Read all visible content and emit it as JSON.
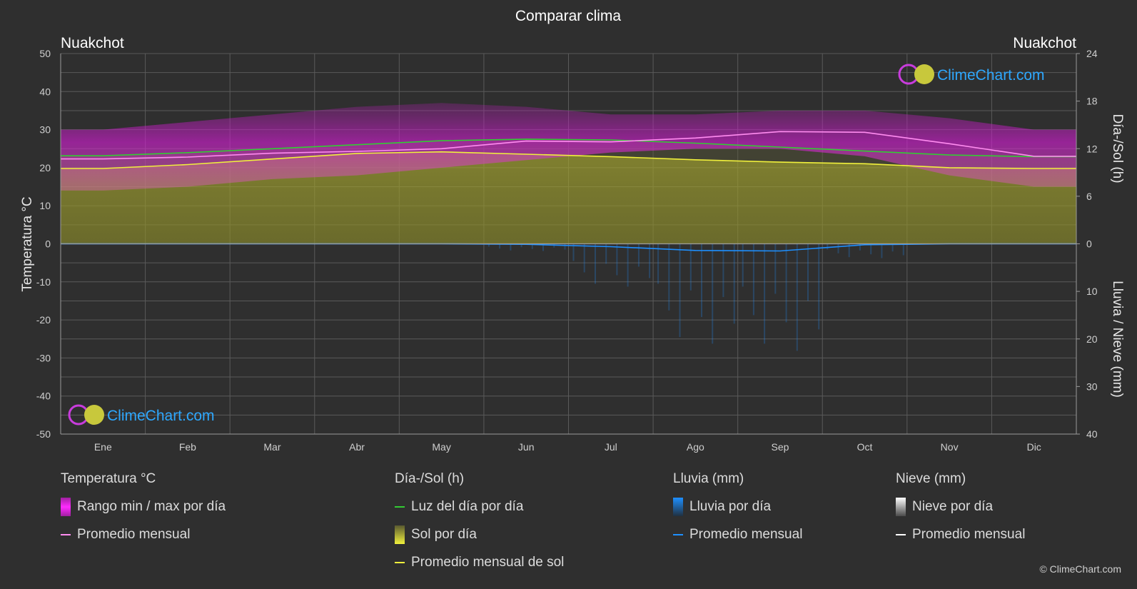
{
  "title": "Comparar clima",
  "location_left": "Nuakchot",
  "location_right": "Nuakchot",
  "axis_left_label": "Temperatura °C",
  "axis_right_top_label": "Día-/Sol (h)",
  "axis_right_bottom_label": "Lluvia / Nieve (mm)",
  "watermark": "ClimeChart.com",
  "copyright": "© ClimeChart.com",
  "colors": {
    "background": "#2f2f2f",
    "temp_range": "#d21ed2",
    "temp_avg": "#ff8cf0",
    "daylight": "#33cc33",
    "sunshine": "#c8c83c",
    "sunshine_avg": "#f0f03c",
    "rain": "#1e90ff",
    "snow": "#ffffff",
    "grid": "#5a5a5a"
  },
  "legend": {
    "temperature": {
      "title": "Temperatura °C",
      "range": "Rango min / max por día",
      "avg": "Promedio mensual"
    },
    "sun": {
      "title": "Día-/Sol (h)",
      "daylight": "Luz del día por día",
      "sunshine": "Sol por día",
      "sunshine_avg": "Promedio mensual de sol"
    },
    "rain": {
      "title": "Lluvia (mm)",
      "daily": "Lluvia por día",
      "avg": "Promedio mensual"
    },
    "snow": {
      "title": "Nieve (mm)",
      "daily": "Nieve por día",
      "avg": "Promedio mensual"
    }
  },
  "chart_data": {
    "type": "area",
    "title": "Comparar clima",
    "categories": [
      "Ene",
      "Feb",
      "Mar",
      "Abr",
      "May",
      "Jun",
      "Jul",
      "Ago",
      "Sep",
      "Oct",
      "Nov",
      "Dic"
    ],
    "y_left": {
      "label": "Temperatura °C",
      "range": [
        -50,
        50
      ],
      "ticks": [
        50,
        40,
        30,
        20,
        10,
        0,
        -10,
        -20,
        -30,
        -40,
        -50
      ]
    },
    "y_right_top": {
      "label": "Día-/Sol (h)",
      "range": [
        0,
        24
      ],
      "ticks": [
        24,
        18,
        12,
        6,
        0
      ]
    },
    "y_right_bottom": {
      "label": "Lluvia / Nieve (mm)",
      "range": [
        0,
        40
      ],
      "ticks": [
        0,
        10,
        20,
        30,
        40
      ]
    },
    "grid": true,
    "series": [
      {
        "name": "Rango min / max por día",
        "axis": "temperature",
        "min": [
          14,
          15,
          17,
          18,
          20,
          22,
          24,
          25,
          25,
          23,
          18,
          15
        ],
        "max": [
          30,
          32,
          34,
          36,
          37,
          36,
          34,
          34,
          35,
          35,
          33,
          30
        ]
      },
      {
        "name": "Promedio mensual",
        "axis": "temperature",
        "values": [
          22.3,
          22.8,
          23.8,
          24.3,
          25.0,
          27.0,
          26.8,
          27.8,
          29.5,
          29.3,
          26.3,
          23.0
        ]
      },
      {
        "name": "Luz del día por día",
        "axis": "hours",
        "values": [
          11.1,
          11.5,
          12.0,
          12.5,
          13.0,
          13.2,
          13.1,
          12.7,
          12.2,
          11.7,
          11.2,
          11.0
        ]
      },
      {
        "name": "Sol por día",
        "axis": "hours",
        "values": [
          9.5,
          10.0,
          10.7,
          11.4,
          11.6,
          11.3,
          11.0,
          10.6,
          10.3,
          10.1,
          9.6,
          9.5
        ]
      },
      {
        "name": "Promedio mensual de sol",
        "axis": "hours",
        "values": [
          9.5,
          10.0,
          10.7,
          11.4,
          11.6,
          11.3,
          11.0,
          10.6,
          10.3,
          10.1,
          9.6,
          9.5
        ]
      },
      {
        "name": "Promedio mensual",
        "axis": "rain",
        "values": [
          0.0,
          0.0,
          0.0,
          0.0,
          0.0,
          0.1,
          0.6,
          1.4,
          1.5,
          0.2,
          0.0,
          0.0
        ]
      },
      {
        "name": "Promedio mensual",
        "axis": "snow",
        "values": [
          0,
          0,
          0,
          0,
          0,
          0,
          0,
          0,
          0,
          0,
          0,
          0
        ]
      }
    ]
  }
}
